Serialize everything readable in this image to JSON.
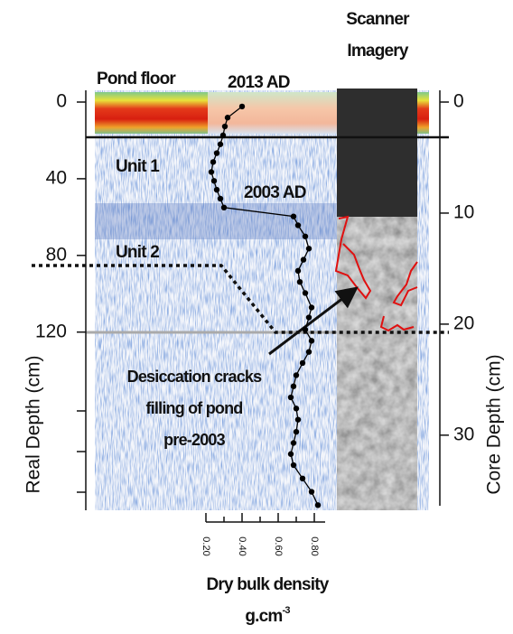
{
  "chart_data": {
    "type": "line",
    "y_label": "Real Depth (cm)",
    "y2_label": "Core Depth (cm)",
    "x_label": "Dry bulk density",
    "x_unit": "g.cm",
    "x_unit_exponent": "-3",
    "scanner_label": [
      "Scanner",
      "Imagery"
    ],
    "pond_floor_label": "Pond floor",
    "unit_labels": [
      "Unit 1",
      "Unit 2"
    ],
    "date_labels": [
      "2013 AD",
      "2003 AD"
    ],
    "crack_label": [
      "Desiccation cracks",
      "filling of pond",
      "pre-2003"
    ],
    "ylim": [
      0,
      212
    ],
    "yticks": [
      0,
      40,
      80,
      120
    ],
    "y2lim": [
      0,
      36.6
    ],
    "y2ticks": [
      0,
      10,
      20,
      30
    ],
    "xlim": [
      0.2,
      0.86
    ],
    "xticks": [
      {
        "value": 0.2,
        "label": "0.20"
      },
      {
        "value": 0.4,
        "label": "0.40"
      },
      {
        "value": 0.6,
        "label": "0.60"
      },
      {
        "value": 0.8,
        "label": "0.80"
      }
    ],
    "color": "#000000",
    "depth": [
      0.4,
      1.4,
      2.2,
      3.0,
      3.8,
      4.6,
      5.4,
      6.3,
      7.1,
      7.9,
      8.7,
      9.5,
      10.3,
      11.1,
      12.1,
      13.2,
      14.2,
      15.2,
      16.2,
      17.2,
      18.5,
      19.4,
      20.5,
      21.5,
      22.5,
      23.5,
      24.6,
      25.6,
      26.6,
      27.6,
      28.6,
      29.7,
      30.7,
      31.7,
      32.7,
      33.9,
      35.1,
      36.3
    ],
    "density": [
      0.4,
      0.32,
      0.305,
      0.295,
      0.28,
      0.26,
      0.24,
      0.23,
      0.245,
      0.26,
      0.28,
      0.3,
      0.685,
      0.71,
      0.75,
      0.77,
      0.74,
      0.71,
      0.72,
      0.75,
      0.785,
      0.77,
      0.75,
      0.785,
      0.77,
      0.735,
      0.7,
      0.685,
      0.67,
      0.7,
      0.71,
      0.7,
      0.685,
      0.67,
      0.685,
      0.735,
      0.785,
      0.82
    ]
  }
}
